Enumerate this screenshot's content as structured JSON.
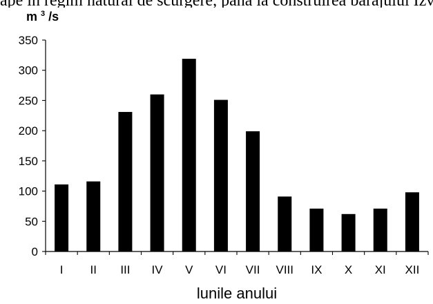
{
  "cropped_heading": "ape în regim natural de scurgere, până la construirea barajului Izvorul Muntelui",
  "chart_data": {
    "type": "bar",
    "categories": [
      "I",
      "II",
      "III",
      "IV",
      "V",
      "VI",
      "VII",
      "VIII",
      "IX",
      "X",
      "XI",
      "XII"
    ],
    "values": [
      111,
      116,
      231,
      260,
      319,
      251,
      199,
      91,
      71,
      62,
      71,
      98
    ],
    "title": "",
    "xlabel": "lunile anului",
    "ylabel": "m3/s",
    "ylabel_parts": {
      "base": "m",
      "superscript": "3",
      "suffix": "/s"
    },
    "ylim": [
      0,
      350
    ],
    "yticks": [
      0,
      50,
      100,
      150,
      200,
      250,
      300,
      350
    ],
    "grid": false,
    "legend": "none",
    "bar_color": "#000000",
    "axis_color": "#000000"
  }
}
